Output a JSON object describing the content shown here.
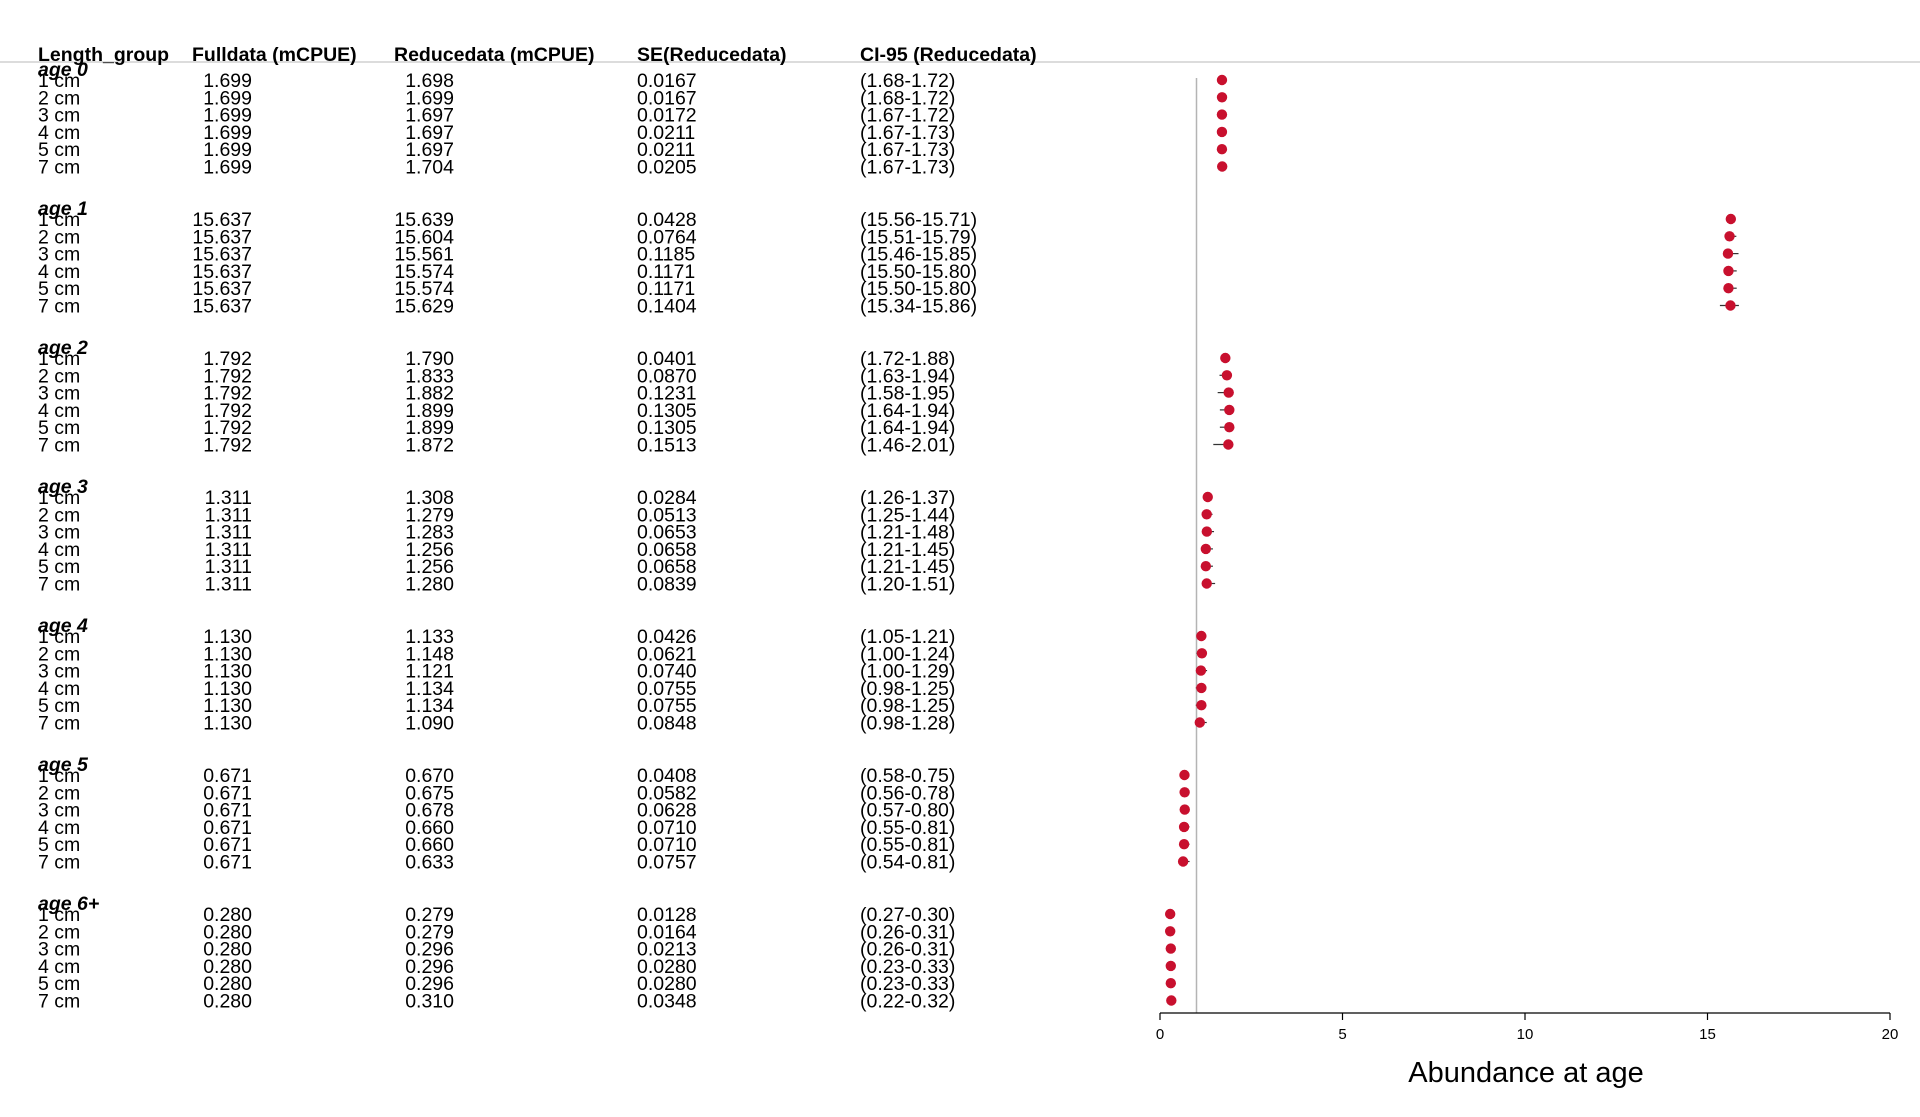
{
  "chart_data": {
    "type": "forest",
    "columns": [
      "Length_group",
      "Fulldata (mCPUE)",
      "Reducedata (mCPUE)",
      "SE(Reducedata)",
      "CI-95 (Reducedata)"
    ],
    "xlabel": "Abundance at age",
    "xlim": [
      0,
      20
    ],
    "xticks": [
      0,
      5,
      10,
      15,
      20
    ],
    "reference_line": 1,
    "point_color": "#c8102e",
    "groups": [
      {
        "label": "age 0",
        "rows": [
          {
            "length": "1 cm",
            "full": "1.699",
            "reduced": "1.698",
            "se": "0.0167",
            "ci": "(1.68-1.72)",
            "est": 1.698,
            "lo": 1.68,
            "hi": 1.72
          },
          {
            "length": "2 cm",
            "full": "1.699",
            "reduced": "1.699",
            "se": "0.0167",
            "ci": "(1.68-1.72)",
            "est": 1.699,
            "lo": 1.68,
            "hi": 1.72
          },
          {
            "length": "3 cm",
            "full": "1.699",
            "reduced": "1.697",
            "se": "0.0172",
            "ci": "(1.67-1.72)",
            "est": 1.697,
            "lo": 1.67,
            "hi": 1.72
          },
          {
            "length": "4 cm",
            "full": "1.699",
            "reduced": "1.697",
            "se": "0.0211",
            "ci": "(1.67-1.73)",
            "est": 1.697,
            "lo": 1.67,
            "hi": 1.73
          },
          {
            "length": "5 cm",
            "full": "1.699",
            "reduced": "1.697",
            "se": "0.0211",
            "ci": "(1.67-1.73)",
            "est": 1.697,
            "lo": 1.67,
            "hi": 1.73
          },
          {
            "length": "7 cm",
            "full": "1.699",
            "reduced": "1.704",
            "se": "0.0205",
            "ci": "(1.67-1.73)",
            "est": 1.704,
            "lo": 1.67,
            "hi": 1.73
          }
        ]
      },
      {
        "label": "age 1",
        "rows": [
          {
            "length": "1 cm",
            "full": "15.637",
            "reduced": "15.639",
            "se": "0.0428",
            "ci": "(15.56-15.71)",
            "est": 15.639,
            "lo": 15.56,
            "hi": 15.71
          },
          {
            "length": "2 cm",
            "full": "15.637",
            "reduced": "15.604",
            "se": "0.0764",
            "ci": "(15.51-15.79)",
            "est": 15.604,
            "lo": 15.51,
            "hi": 15.79
          },
          {
            "length": "3 cm",
            "full": "15.637",
            "reduced": "15.561",
            "se": "0.1185",
            "ci": "(15.46-15.85)",
            "est": 15.561,
            "lo": 15.46,
            "hi": 15.85
          },
          {
            "length": "4 cm",
            "full": "15.637",
            "reduced": "15.574",
            "se": "0.1171",
            "ci": "(15.50-15.80)",
            "est": 15.574,
            "lo": 15.5,
            "hi": 15.8
          },
          {
            "length": "5 cm",
            "full": "15.637",
            "reduced": "15.574",
            "se": "0.1171",
            "ci": "(15.50-15.80)",
            "est": 15.574,
            "lo": 15.5,
            "hi": 15.8
          },
          {
            "length": "7 cm",
            "full": "15.637",
            "reduced": "15.629",
            "se": "0.1404",
            "ci": "(15.34-15.86)",
            "est": 15.629,
            "lo": 15.34,
            "hi": 15.86
          }
        ]
      },
      {
        "label": "age 2",
        "rows": [
          {
            "length": "1 cm",
            "full": "1.792",
            "reduced": "1.790",
            "se": "0.0401",
            "ci": "(1.72-1.88)",
            "est": 1.79,
            "lo": 1.72,
            "hi": 1.88
          },
          {
            "length": "2 cm",
            "full": "1.792",
            "reduced": "1.833",
            "se": "0.0870",
            "ci": "(1.63-1.94)",
            "est": 1.833,
            "lo": 1.63,
            "hi": 1.94
          },
          {
            "length": "3 cm",
            "full": "1.792",
            "reduced": "1.882",
            "se": "0.1231",
            "ci": "(1.58-1.95)",
            "est": 1.882,
            "lo": 1.58,
            "hi": 1.95
          },
          {
            "length": "4 cm",
            "full": "1.792",
            "reduced": "1.899",
            "se": "0.1305",
            "ci": "(1.64-1.94)",
            "est": 1.899,
            "lo": 1.64,
            "hi": 1.94
          },
          {
            "length": "5 cm",
            "full": "1.792",
            "reduced": "1.899",
            "se": "0.1305",
            "ci": "(1.64-1.94)",
            "est": 1.899,
            "lo": 1.64,
            "hi": 1.94
          },
          {
            "length": "7 cm",
            "full": "1.792",
            "reduced": "1.872",
            "se": "0.1513",
            "ci": "(1.46-2.01)",
            "est": 1.872,
            "lo": 1.46,
            "hi": 2.01
          }
        ]
      },
      {
        "label": "age 3",
        "rows": [
          {
            "length": "1 cm",
            "full": "1.311",
            "reduced": "1.308",
            "se": "0.0284",
            "ci": "(1.26-1.37)",
            "est": 1.308,
            "lo": 1.26,
            "hi": 1.37
          },
          {
            "length": "2 cm",
            "full": "1.311",
            "reduced": "1.279",
            "se": "0.0513",
            "ci": "(1.25-1.44)",
            "est": 1.279,
            "lo": 1.25,
            "hi": 1.44
          },
          {
            "length": "3 cm",
            "full": "1.311",
            "reduced": "1.283",
            "se": "0.0653",
            "ci": "(1.21-1.48)",
            "est": 1.283,
            "lo": 1.21,
            "hi": 1.48
          },
          {
            "length": "4 cm",
            "full": "1.311",
            "reduced": "1.256",
            "se": "0.0658",
            "ci": "(1.21-1.45)",
            "est": 1.256,
            "lo": 1.21,
            "hi": 1.45
          },
          {
            "length": "5 cm",
            "full": "1.311",
            "reduced": "1.256",
            "se": "0.0658",
            "ci": "(1.21-1.45)",
            "est": 1.256,
            "lo": 1.21,
            "hi": 1.45
          },
          {
            "length": "7 cm",
            "full": "1.311",
            "reduced": "1.280",
            "se": "0.0839",
            "ci": "(1.20-1.51)",
            "est": 1.28,
            "lo": 1.2,
            "hi": 1.51
          }
        ]
      },
      {
        "label": "age 4",
        "rows": [
          {
            "length": "1 cm",
            "full": "1.130",
            "reduced": "1.133",
            "se": "0.0426",
            "ci": "(1.05-1.21)",
            "est": 1.133,
            "lo": 1.05,
            "hi": 1.21
          },
          {
            "length": "2 cm",
            "full": "1.130",
            "reduced": "1.148",
            "se": "0.0621",
            "ci": "(1.00-1.24)",
            "est": 1.148,
            "lo": 1.0,
            "hi": 1.24
          },
          {
            "length": "3 cm",
            "full": "1.130",
            "reduced": "1.121",
            "se": "0.0740",
            "ci": "(1.00-1.29)",
            "est": 1.121,
            "lo": 1.0,
            "hi": 1.29
          },
          {
            "length": "4 cm",
            "full": "1.130",
            "reduced": "1.134",
            "se": "0.0755",
            "ci": "(0.98-1.25)",
            "est": 1.134,
            "lo": 0.98,
            "hi": 1.25
          },
          {
            "length": "5 cm",
            "full": "1.130",
            "reduced": "1.134",
            "se": "0.0755",
            "ci": "(0.98-1.25)",
            "est": 1.134,
            "lo": 0.98,
            "hi": 1.25
          },
          {
            "length": "7 cm",
            "full": "1.130",
            "reduced": "1.090",
            "se": "0.0848",
            "ci": "(0.98-1.28)",
            "est": 1.09,
            "lo": 0.98,
            "hi": 1.28
          }
        ]
      },
      {
        "label": "age 5",
        "rows": [
          {
            "length": "1 cm",
            "full": "0.671",
            "reduced": "0.670",
            "se": "0.0408",
            "ci": "(0.58-0.75)",
            "est": 0.67,
            "lo": 0.58,
            "hi": 0.75
          },
          {
            "length": "2 cm",
            "full": "0.671",
            "reduced": "0.675",
            "se": "0.0582",
            "ci": "(0.56-0.78)",
            "est": 0.675,
            "lo": 0.56,
            "hi": 0.78
          },
          {
            "length": "3 cm",
            "full": "0.671",
            "reduced": "0.678",
            "se": "0.0628",
            "ci": "(0.57-0.80)",
            "est": 0.678,
            "lo": 0.57,
            "hi": 0.8
          },
          {
            "length": "4 cm",
            "full": "0.671",
            "reduced": "0.660",
            "se": "0.0710",
            "ci": "(0.55-0.81)",
            "est": 0.66,
            "lo": 0.55,
            "hi": 0.81
          },
          {
            "length": "5 cm",
            "full": "0.671",
            "reduced": "0.660",
            "se": "0.0710",
            "ci": "(0.55-0.81)",
            "est": 0.66,
            "lo": 0.55,
            "hi": 0.81
          },
          {
            "length": "7 cm",
            "full": "0.671",
            "reduced": "0.633",
            "se": "0.0757",
            "ci": "(0.54-0.81)",
            "est": 0.633,
            "lo": 0.54,
            "hi": 0.81
          }
        ]
      },
      {
        "label": "age 6+",
        "rows": [
          {
            "length": "1 cm",
            "full": "0.280",
            "reduced": "0.279",
            "se": "0.0128",
            "ci": "(0.27-0.30)",
            "est": 0.279,
            "lo": 0.27,
            "hi": 0.3
          },
          {
            "length": "2 cm",
            "full": "0.280",
            "reduced": "0.279",
            "se": "0.0164",
            "ci": "(0.26-0.31)",
            "est": 0.279,
            "lo": 0.26,
            "hi": 0.31
          },
          {
            "length": "3 cm",
            "full": "0.280",
            "reduced": "0.296",
            "se": "0.0213",
            "ci": "(0.26-0.31)",
            "est": 0.296,
            "lo": 0.26,
            "hi": 0.31
          },
          {
            "length": "4 cm",
            "full": "0.280",
            "reduced": "0.296",
            "se": "0.0280",
            "ci": "(0.23-0.33)",
            "est": 0.296,
            "lo": 0.23,
            "hi": 0.33
          },
          {
            "length": "5 cm",
            "full": "0.280",
            "reduced": "0.296",
            "se": "0.0280",
            "ci": "(0.23-0.33)",
            "est": 0.296,
            "lo": 0.23,
            "hi": 0.33
          },
          {
            "length": "7 cm",
            "full": "0.280",
            "reduced": "0.310",
            "se": "0.0348",
            "ci": "(0.22-0.32)",
            "est": 0.31,
            "lo": 0.22,
            "hi": 0.32
          }
        ]
      }
    ]
  }
}
